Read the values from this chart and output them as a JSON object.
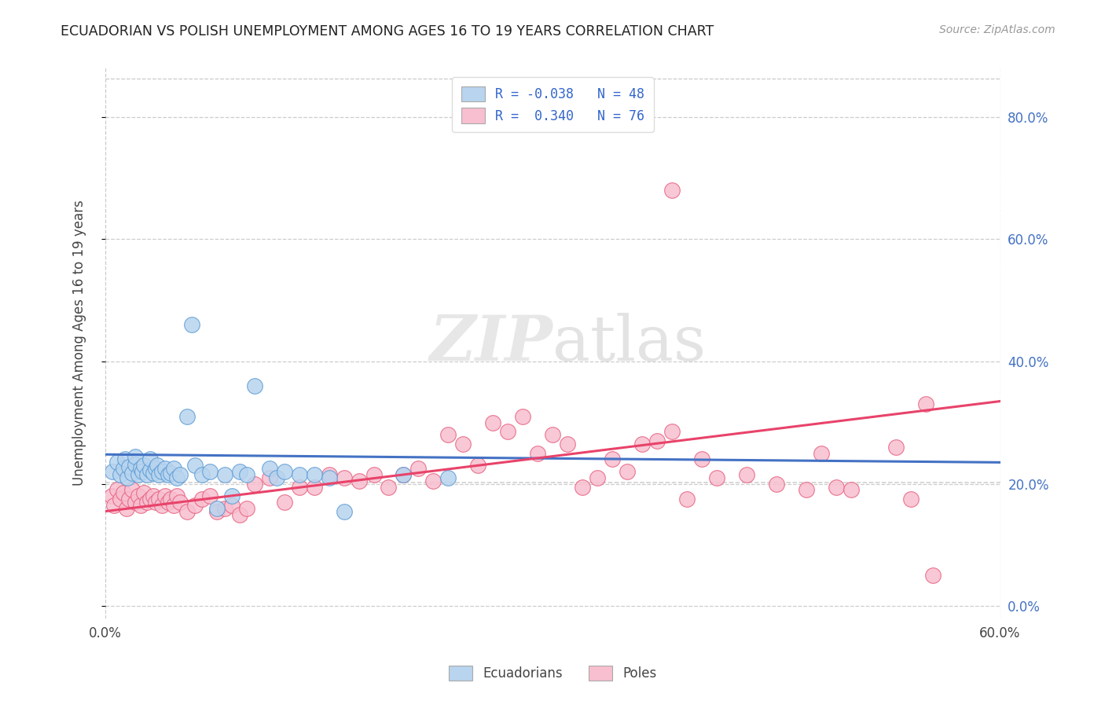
{
  "title": "ECUADORIAN VS POLISH UNEMPLOYMENT AMONG AGES 16 TO 19 YEARS CORRELATION CHART",
  "source": "Source: ZipAtlas.com",
  "ylabel": "Unemployment Among Ages 16 to 19 years",
  "xlim": [
    0.0,
    0.6
  ],
  "ylim": [
    -0.02,
    0.88
  ],
  "right_yticks": [
    0.0,
    0.2,
    0.4,
    0.6,
    0.8
  ],
  "right_yticklabels": [
    "0.0%",
    "20.0%",
    "40.0%",
    "60.0%",
    "80.0%"
  ],
  "xticks": [
    0.0,
    0.6
  ],
  "xticklabels": [
    "0.0%",
    "60.0%"
  ],
  "grid_color": "#c8c8c8",
  "background_color": "#ffffff",
  "ecuadorian_color": "#b8d4ee",
  "polish_color": "#f7bfcf",
  "ecuadorian_edge_color": "#5b9bd5",
  "polish_edge_color": "#e86080",
  "ecuadorian_line_color": "#4472c4",
  "polish_line_color": "#e8436a",
  "watermark_text": "ZIPatlas",
  "ecuadorian_x": [
    0.005,
    0.008,
    0.01,
    0.012,
    0.013,
    0.015,
    0.016,
    0.018,
    0.02,
    0.02,
    0.022,
    0.024,
    0.025,
    0.026,
    0.028,
    0.03,
    0.03,
    0.032,
    0.034,
    0.035,
    0.036,
    0.038,
    0.04,
    0.042,
    0.044,
    0.046,
    0.048,
    0.05,
    0.055,
    0.058,
    0.06,
    0.065,
    0.07,
    0.075,
    0.08,
    0.085,
    0.09,
    0.095,
    0.1,
    0.11,
    0.115,
    0.12,
    0.13,
    0.14,
    0.15,
    0.16,
    0.2,
    0.23
  ],
  "ecuadorian_y": [
    0.22,
    0.235,
    0.215,
    0.225,
    0.24,
    0.21,
    0.228,
    0.218,
    0.232,
    0.245,
    0.215,
    0.225,
    0.22,
    0.23,
    0.215,
    0.222,
    0.24,
    0.218,
    0.225,
    0.23,
    0.215,
    0.22,
    0.225,
    0.215,
    0.218,
    0.225,
    0.21,
    0.215,
    0.31,
    0.46,
    0.23,
    0.215,
    0.22,
    0.16,
    0.215,
    0.18,
    0.22,
    0.215,
    0.36,
    0.225,
    0.21,
    0.22,
    0.215,
    0.215,
    0.21,
    0.155,
    0.215,
    0.21
  ],
  "polish_x": [
    0.004,
    0.006,
    0.008,
    0.01,
    0.012,
    0.014,
    0.016,
    0.018,
    0.02,
    0.022,
    0.024,
    0.026,
    0.028,
    0.03,
    0.032,
    0.034,
    0.036,
    0.038,
    0.04,
    0.042,
    0.044,
    0.046,
    0.048,
    0.05,
    0.055,
    0.06,
    0.065,
    0.07,
    0.075,
    0.08,
    0.085,
    0.09,
    0.095,
    0.1,
    0.11,
    0.12,
    0.13,
    0.14,
    0.15,
    0.16,
    0.17,
    0.18,
    0.19,
    0.2,
    0.21,
    0.22,
    0.23,
    0.24,
    0.25,
    0.26,
    0.27,
    0.28,
    0.29,
    0.3,
    0.31,
    0.32,
    0.33,
    0.34,
    0.35,
    0.36,
    0.37,
    0.38,
    0.39,
    0.4,
    0.41,
    0.43,
    0.45,
    0.47,
    0.49,
    0.5,
    0.38,
    0.48,
    0.53,
    0.54,
    0.55,
    0.555
  ],
  "polish_y": [
    0.18,
    0.165,
    0.19,
    0.175,
    0.185,
    0.16,
    0.175,
    0.19,
    0.17,
    0.18,
    0.165,
    0.185,
    0.17,
    0.175,
    0.18,
    0.17,
    0.175,
    0.165,
    0.18,
    0.17,
    0.175,
    0.165,
    0.18,
    0.17,
    0.155,
    0.165,
    0.175,
    0.18,
    0.155,
    0.16,
    0.165,
    0.15,
    0.16,
    0.2,
    0.21,
    0.17,
    0.195,
    0.195,
    0.215,
    0.21,
    0.205,
    0.215,
    0.195,
    0.215,
    0.225,
    0.205,
    0.28,
    0.265,
    0.23,
    0.3,
    0.285,
    0.31,
    0.25,
    0.28,
    0.265,
    0.195,
    0.21,
    0.24,
    0.22,
    0.265,
    0.27,
    0.285,
    0.175,
    0.24,
    0.21,
    0.215,
    0.2,
    0.19,
    0.195,
    0.19,
    0.68,
    0.25,
    0.26,
    0.175,
    0.33,
    0.05
  ]
}
